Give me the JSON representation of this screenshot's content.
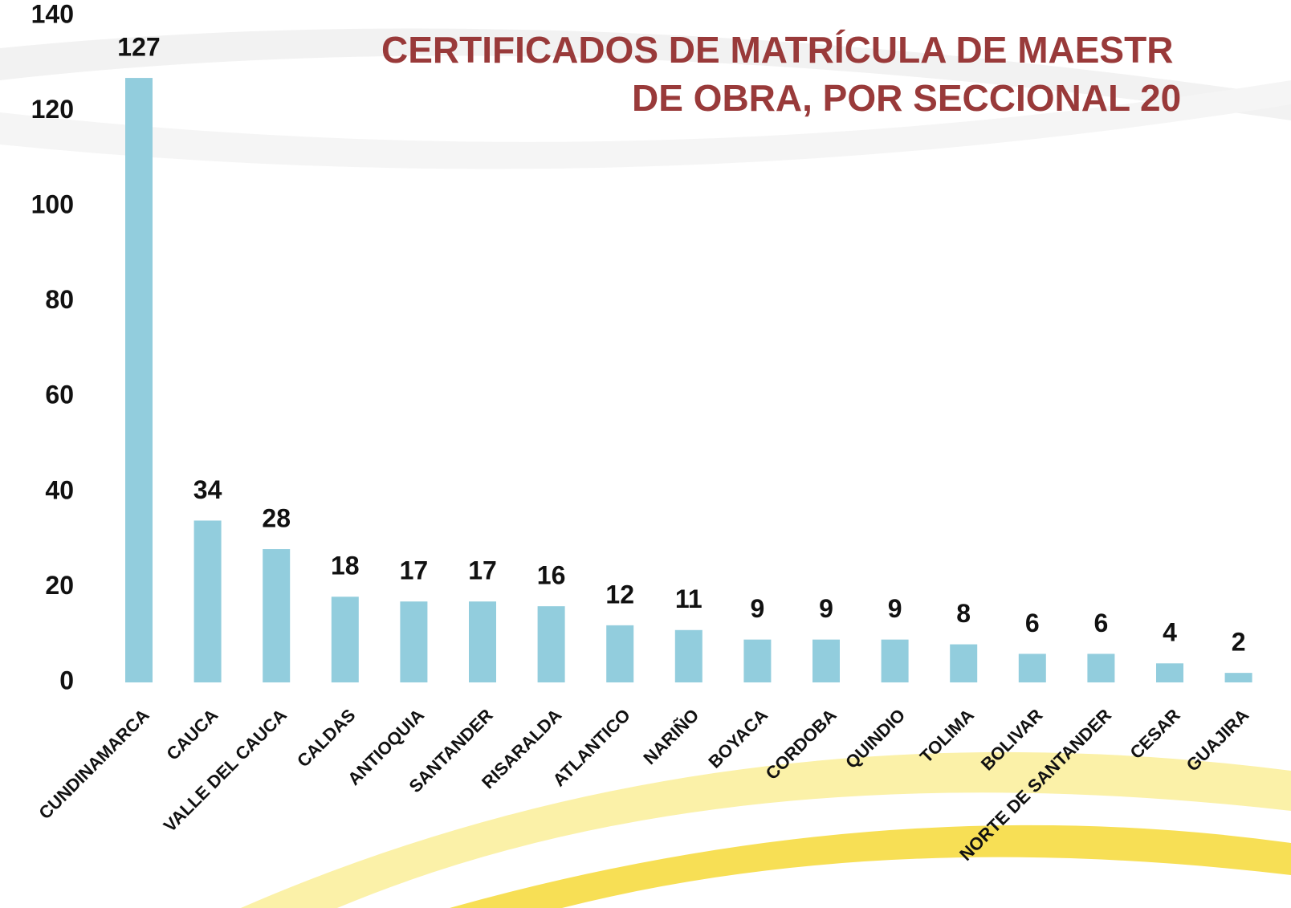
{
  "chart_data": {
    "type": "bar",
    "title": [
      "CERTIFICADOS DE MATRÍCULA DE MAESTR",
      "DE OBRA, POR SECCIONAL  20"
    ],
    "categories": [
      "CUNDINAMARCA",
      "CAUCA",
      "VALLE DEL CAUCA",
      "CALDAS",
      "ANTIOQUIA",
      "SANTANDER",
      "RISARALDA",
      "ATLANTICO",
      "NARIÑO",
      "BOYACA",
      "CORDOBA",
      "QUINDIO",
      "TOLIMA",
      "BOLIVAR",
      "NORTE DE SANTANDER",
      "CESAR",
      "GUAJIRA"
    ],
    "values": [
      127,
      34,
      28,
      18,
      17,
      17,
      16,
      12,
      11,
      9,
      9,
      9,
      8,
      6,
      6,
      4,
      2
    ],
    "color": "#92cddd",
    "ylim": [
      0,
      140
    ],
    "yticks": [
      0,
      20,
      40,
      60,
      80,
      100,
      120,
      140
    ],
    "grid": false
  }
}
